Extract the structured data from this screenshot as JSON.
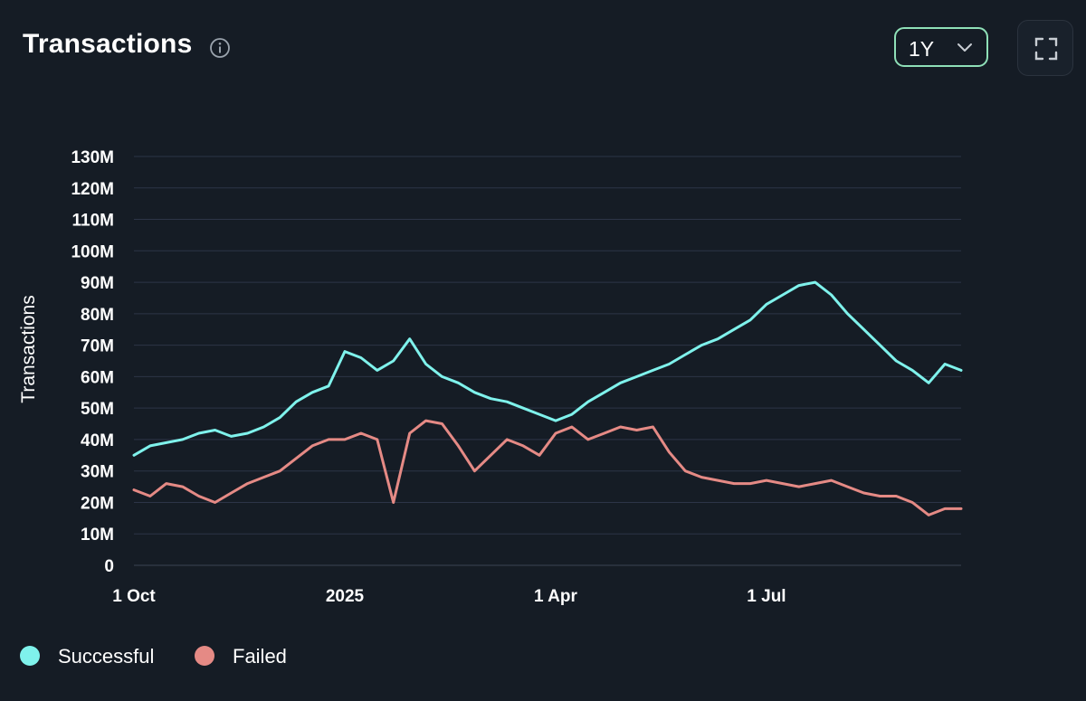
{
  "header": {
    "title": "Transactions",
    "range": "1Y"
  },
  "icons": {
    "info": "info-icon",
    "dropdown": "chevron-down-icon",
    "fullscreen": "fullscreen-icon"
  },
  "colors": {
    "background": "#151c25",
    "grid": "#2c3447",
    "successful": "#7ff2ec",
    "failed": "#e58a85",
    "accent_border": "#8fe0b8"
  },
  "chart_data": {
    "type": "line",
    "title": "Transactions",
    "xlabel": "",
    "ylabel": "Transactions",
    "ylim": [
      0,
      130000000
    ],
    "grid": true,
    "legend": "bottom-left",
    "y_ticks": [
      "0",
      "10M",
      "20M",
      "30M",
      "40M",
      "50M",
      "60M",
      "70M",
      "80M",
      "90M",
      "100M",
      "110M",
      "120M",
      "130M"
    ],
    "x_ticks": [
      {
        "label": "1 Oct",
        "week": 0
      },
      {
        "label": "2025",
        "week": 13
      },
      {
        "label": "1 Apr",
        "week": 26
      },
      {
        "label": "1 Jul",
        "week": 39
      }
    ],
    "x_unit": "weeks since 1 Oct 2024 (approx.)",
    "x_range": [
      0,
      51
    ],
    "series": [
      {
        "name": "Successful",
        "color": "#7ff2ec",
        "x": [
          0,
          1,
          2,
          3,
          4,
          5,
          6,
          7,
          8,
          9,
          10,
          11,
          12,
          13,
          14,
          15,
          16,
          17,
          18,
          19,
          20,
          21,
          22,
          23,
          24,
          25,
          26,
          27,
          28,
          29,
          30,
          31,
          32,
          33,
          34,
          35,
          36,
          37,
          38,
          39,
          40,
          41,
          42,
          43,
          44,
          45,
          46,
          47,
          48,
          49,
          50,
          51
        ],
        "values": [
          35,
          38,
          39,
          40,
          42,
          43,
          41,
          42,
          44,
          47,
          52,
          55,
          57,
          68,
          66,
          62,
          65,
          72,
          64,
          60,
          58,
          55,
          53,
          52,
          50,
          48,
          46,
          48,
          52,
          55,
          58,
          60,
          62,
          64,
          67,
          70,
          72,
          75,
          78,
          83,
          86,
          89,
          90,
          86,
          80,
          75,
          70,
          65,
          62,
          58,
          64,
          62
        ]
      },
      {
        "name": "Failed",
        "color": "#e58a85",
        "x": [
          0,
          1,
          2,
          3,
          4,
          5,
          6,
          7,
          8,
          9,
          10,
          11,
          12,
          13,
          14,
          15,
          16,
          17,
          18,
          19,
          20,
          21,
          22,
          23,
          24,
          25,
          26,
          27,
          28,
          29,
          30,
          31,
          32,
          33,
          34,
          35,
          36,
          37,
          38,
          39,
          40,
          41,
          42,
          43,
          44,
          45,
          46,
          47,
          48,
          49,
          50,
          51
        ],
        "values": [
          24,
          22,
          26,
          25,
          22,
          20,
          23,
          26,
          28,
          30,
          34,
          38,
          40,
          40,
          42,
          40,
          20,
          42,
          46,
          45,
          38,
          30,
          35,
          40,
          38,
          35,
          42,
          44,
          40,
          42,
          44,
          43,
          44,
          36,
          30,
          28,
          27,
          26,
          26,
          27,
          26,
          25,
          26,
          27,
          25,
          23,
          22,
          22,
          20,
          16,
          18,
          18
        ]
      }
    ]
  }
}
